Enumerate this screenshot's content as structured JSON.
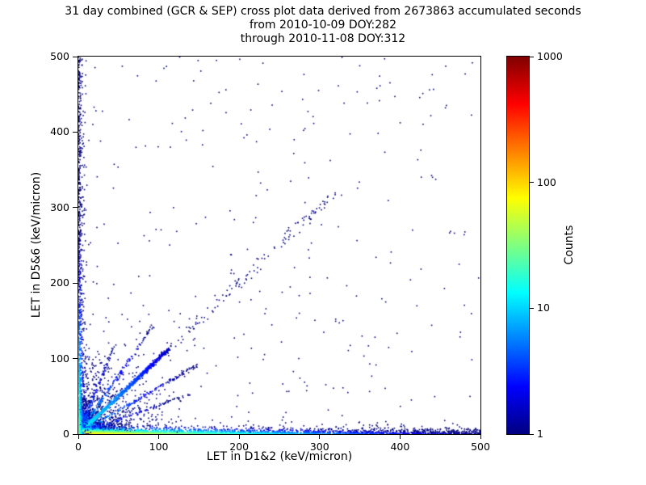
{
  "figure": {
    "background": "#ffffff",
    "accumulated_seconds_shown": "2673863"
  },
  "chart_data": {
    "type": "scatter",
    "title": "31 day combined (GCR & SEP) cross plot data derived from 2673863 accumulated seconds",
    "subtitle_from": "from 2010-10-09 DOY:282",
    "subtitle_through": "through 2010-11-08 DOY:312",
    "xlabel": "LET in D1&2 (keV/micron)",
    "ylabel": "LET in D5&6 (keV/micron)",
    "xlim": [
      0,
      500
    ],
    "ylim": [
      0,
      500
    ],
    "xticks": [
      0,
      100,
      200,
      300,
      400,
      500
    ],
    "yticks": [
      0,
      100,
      200,
      300,
      400,
      500
    ],
    "grid": false,
    "point_color_low": "#00007f",
    "colorbar": {
      "label": "Counts",
      "scale": "log",
      "range": [
        1,
        1000
      ],
      "ticks": [
        1,
        10,
        100,
        1000
      ],
      "colormap": "jet",
      "gradient": [
        "#000080 0%",
        "#0000ff 12.5%",
        "#00ffff 37.5%",
        "#ffff00 62.5%",
        "#ff0000 87.5%",
        "#800000 100%"
      ]
    },
    "clusters": [
      {
        "name": "origin-core",
        "dist": "exp2d",
        "n": 5200,
        "sx": 8,
        "sy": 8,
        "amp": 150
      },
      {
        "name": "origin-haze",
        "dist": "exp2d",
        "n": 1000,
        "sx": 34,
        "sy": 34,
        "amp": 5
      },
      {
        "name": "main-diagonal",
        "dist": "line",
        "n": 850,
        "slope": 1.0,
        "d0": 0,
        "d1": 160,
        "spread": 2.4,
        "amp": 15
      },
      {
        "name": "diagonal-sparse-extension",
        "dist": "line",
        "n": 120,
        "slope": 1.0,
        "d0": 150,
        "d1": 460,
        "spread": 7,
        "amp": 1
      },
      {
        "name": "fan-streak-steep",
        "dist": "line",
        "n": 160,
        "slope": 1.55,
        "d0": 0,
        "d1": 170,
        "spread": 2.2,
        "amp": 10
      },
      {
        "name": "fan-streak-shallow",
        "dist": "line",
        "n": 170,
        "slope": 0.62,
        "d0": 0,
        "d1": 175,
        "spread": 2.2,
        "amp": 10
      },
      {
        "name": "fan-streak-steeper",
        "dist": "line",
        "n": 100,
        "slope": 2.6,
        "d0": 0,
        "d1": 130,
        "spread": 2.0,
        "amp": 6
      },
      {
        "name": "fan-streak-shallower",
        "dist": "line",
        "n": 100,
        "slope": 0.38,
        "d0": 0,
        "d1": 150,
        "spread": 2.0,
        "amp": 6
      },
      {
        "name": "x-axis-band",
        "dist": "bandx",
        "n": 3200,
        "ysc": 2.6,
        "xfall": 110,
        "skew": 2.1,
        "amp": 120
      },
      {
        "name": "y-axis-band",
        "dist": "bandy",
        "n": 1200,
        "xsc": 2.2,
        "yfall": 80,
        "skew": 2.3,
        "amp": 40
      },
      {
        "name": "sparse-background",
        "dist": "uniform",
        "n": 280,
        "amp": 1
      }
    ]
  }
}
